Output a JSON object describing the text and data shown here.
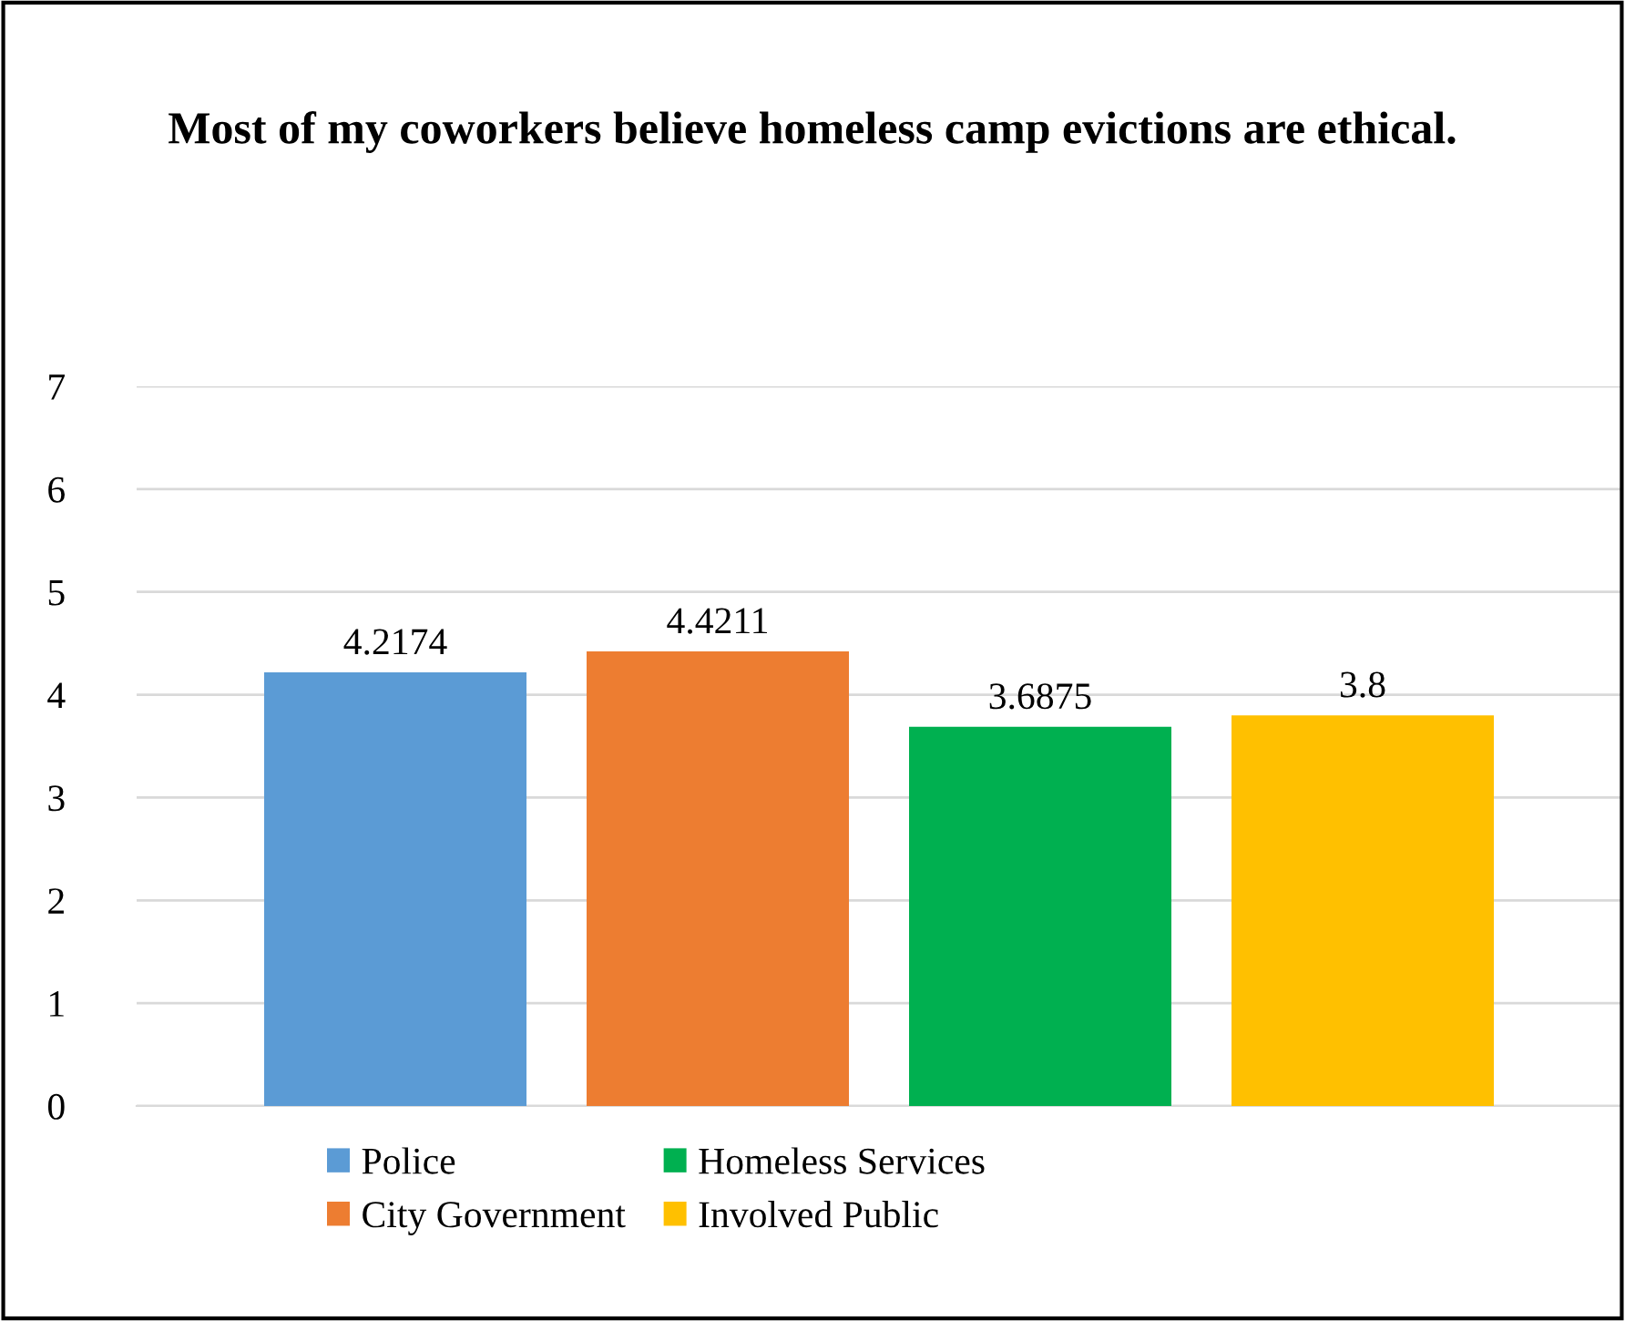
{
  "chart_data": {
    "type": "bar",
    "title": "Most of my coworkers believe homeless camp evictions are ethical.",
    "categories": [
      null
    ],
    "series": [
      {
        "name": "Police",
        "color": "#5b9bd5",
        "values": [
          4.2174
        ]
      },
      {
        "name": "City Government",
        "color": "#ed7d31",
        "values": [
          4.4211
        ]
      },
      {
        "name": "Homeless Services",
        "color": "#00b050",
        "values": [
          3.6875
        ]
      },
      {
        "name": "Involved Public",
        "color": "#ffc000",
        "values": [
          3.8
        ]
      }
    ],
    "ylim": [
      0,
      7
    ],
    "yticks": [
      0,
      1,
      2,
      3,
      4,
      5,
      6,
      7
    ],
    "grid": "y",
    "legend": "bottom",
    "data_labels": true
  }
}
